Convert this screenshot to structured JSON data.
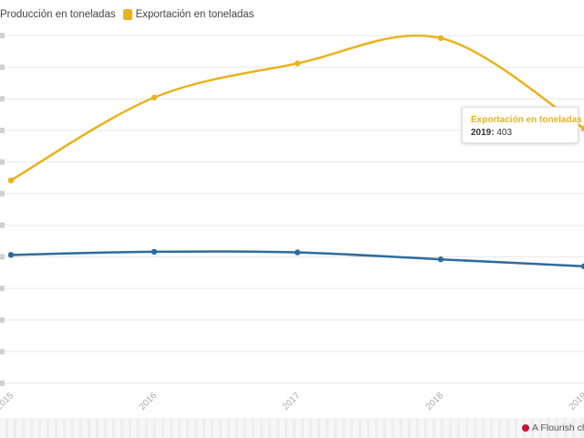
{
  "colors": {
    "production": "#2e6b9e",
    "export": "#e8b320",
    "grid": "#e9e9e9",
    "tick_text": "#aaaaaa"
  },
  "chart_data": {
    "type": "line",
    "x": [
      "2015",
      "2016",
      "2017",
      "2018",
      "2019"
    ],
    "series": [
      {
        "name": "Producción en toneladas",
        "values": [
          203,
          208,
          207,
          196,
          185
        ]
      },
      {
        "name": "Exportación en toneladas",
        "values": [
          321,
          452,
          506,
          546,
          403
        ]
      }
    ],
    "ylim": [
      0,
      550
    ],
    "grid": true,
    "legend_position": "top-left",
    "title": "",
    "xlabel": "",
    "ylabel": ""
  },
  "tooltip": {
    "title": "Exportación en toneladas",
    "year_label": "2019:",
    "value": "403"
  },
  "credit": {
    "text": "A Flourish ch",
    "icon": "flourish-icon"
  }
}
